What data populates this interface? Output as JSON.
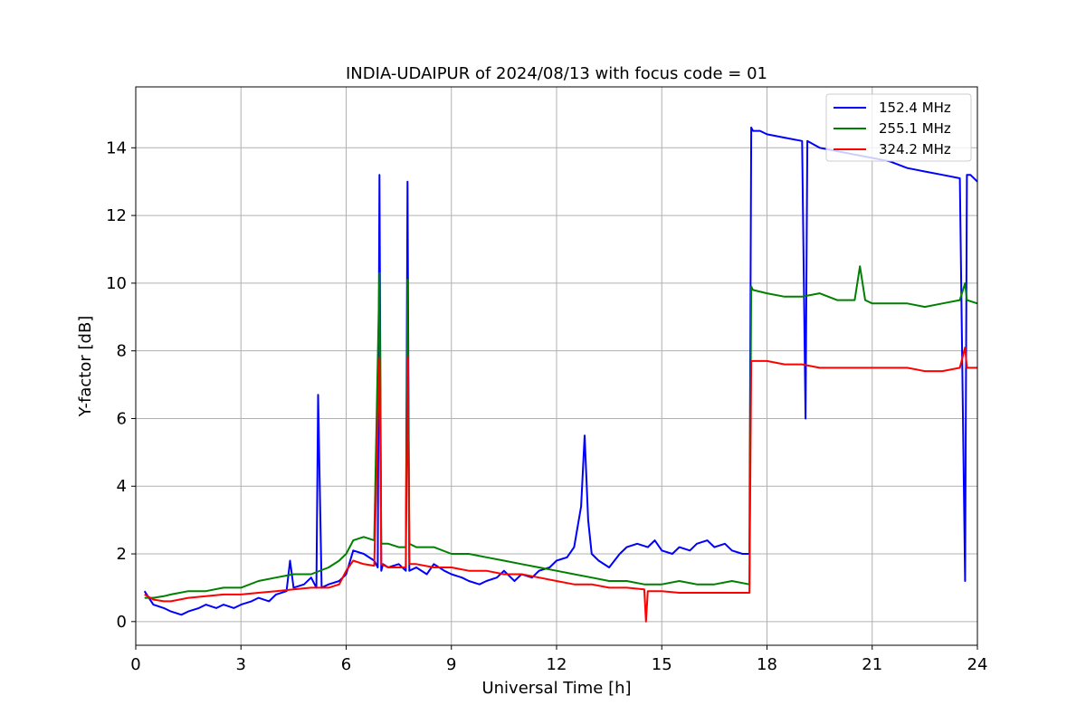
{
  "chart_data": {
    "type": "line",
    "title": "INDIA-UDAIPUR of 2024/08/13 with focus code = 01",
    "xlabel": "Universal Time [h]",
    "ylabel": "Y-factor [dB]",
    "xlim": [
      0,
      24
    ],
    "ylim": [
      -0.7,
      15.8
    ],
    "xticks": [
      0,
      3,
      6,
      9,
      12,
      15,
      18,
      21,
      24
    ],
    "yticks": [
      0,
      2,
      4,
      6,
      8,
      10,
      12,
      14
    ],
    "grid": true,
    "legend_position": "top-right",
    "series": [
      {
        "name": "152.4 MHz",
        "color": "#0000ff",
        "x": [
          0.25,
          0.5,
          0.8,
          1.0,
          1.3,
          1.5,
          1.8,
          2.0,
          2.3,
          2.5,
          2.8,
          3.0,
          3.3,
          3.5,
          3.8,
          4.0,
          4.3,
          4.4,
          4.5,
          4.8,
          5.0,
          5.15,
          5.2,
          5.3,
          5.5,
          5.8,
          6.0,
          6.2,
          6.5,
          6.8,
          6.9,
          6.95,
          7.0,
          7.05,
          7.2,
          7.5,
          7.7,
          7.75,
          7.8,
          8.0,
          8.3,
          8.5,
          8.8,
          9.0,
          9.3,
          9.5,
          9.8,
          10.0,
          10.3,
          10.5,
          10.8,
          11.0,
          11.3,
          11.5,
          11.8,
          12.0,
          12.3,
          12.5,
          12.7,
          12.8,
          12.9,
          13.0,
          13.2,
          13.5,
          13.8,
          14.0,
          14.3,
          14.6,
          14.8,
          15.0,
          15.3,
          15.5,
          15.8,
          16.0,
          16.3,
          16.5,
          16.8,
          17.0,
          17.3,
          17.5,
          17.55,
          17.6,
          17.8,
          18.0,
          18.5,
          19.0,
          19.1,
          19.15,
          19.5,
          20.0,
          20.5,
          21.0,
          21.5,
          22.0,
          22.5,
          23.0,
          23.5,
          23.65,
          23.7,
          23.8,
          24.0
        ],
        "y": [
          0.9,
          0.5,
          0.4,
          0.3,
          0.2,
          0.3,
          0.4,
          0.5,
          0.4,
          0.5,
          0.4,
          0.5,
          0.6,
          0.7,
          0.6,
          0.8,
          0.9,
          1.8,
          1.0,
          1.1,
          1.3,
          1.0,
          6.7,
          1.0,
          1.1,
          1.2,
          1.4,
          2.1,
          2.0,
          1.8,
          1.6,
          13.2,
          1.5,
          1.7,
          1.6,
          1.7,
          1.5,
          13.0,
          1.5,
          1.6,
          1.4,
          1.7,
          1.5,
          1.4,
          1.3,
          1.2,
          1.1,
          1.2,
          1.3,
          1.5,
          1.2,
          1.4,
          1.3,
          1.5,
          1.6,
          1.8,
          1.9,
          2.2,
          3.4,
          5.5,
          3.0,
          2.0,
          1.8,
          1.6,
          2.0,
          2.2,
          2.3,
          2.2,
          2.4,
          2.1,
          2.0,
          2.2,
          2.1,
          2.3,
          2.4,
          2.2,
          2.3,
          2.1,
          2.0,
          2.0,
          14.6,
          14.5,
          14.5,
          14.4,
          14.3,
          14.2,
          6.0,
          14.2,
          14.0,
          13.9,
          13.8,
          13.7,
          13.6,
          13.4,
          13.3,
          13.2,
          13.1,
          1.2,
          13.2,
          13.2,
          13.0
        ]
      },
      {
        "name": "255.1 MHz",
        "color": "#008000",
        "x": [
          0.25,
          0.5,
          0.8,
          1.0,
          1.5,
          2.0,
          2.5,
          3.0,
          3.5,
          4.0,
          4.5,
          5.0,
          5.5,
          5.8,
          6.0,
          6.2,
          6.5,
          6.8,
          6.95,
          7.0,
          7.2,
          7.5,
          7.7,
          7.75,
          7.8,
          8.0,
          8.5,
          9.0,
          9.5,
          10.0,
          10.5,
          11.0,
          11.5,
          12.0,
          12.5,
          13.0,
          13.5,
          14.0,
          14.5,
          15.0,
          15.5,
          16.0,
          16.5,
          17.0,
          17.5,
          17.55,
          17.6,
          18.0,
          18.5,
          19.0,
          19.5,
          20.0,
          20.5,
          20.65,
          20.8,
          21.0,
          21.5,
          22.0,
          22.5,
          23.0,
          23.5,
          23.65,
          23.7,
          24.0
        ],
        "y": [
          0.7,
          0.7,
          0.75,
          0.8,
          0.9,
          0.9,
          1.0,
          1.0,
          1.2,
          1.3,
          1.4,
          1.4,
          1.6,
          1.8,
          2.0,
          2.4,
          2.5,
          2.4,
          10.3,
          2.3,
          2.3,
          2.2,
          2.2,
          10.1,
          2.3,
          2.2,
          2.2,
          2.0,
          2.0,
          1.9,
          1.8,
          1.7,
          1.6,
          1.5,
          1.4,
          1.3,
          1.2,
          1.2,
          1.1,
          1.1,
          1.2,
          1.1,
          1.1,
          1.2,
          1.1,
          9.9,
          9.8,
          9.7,
          9.6,
          9.6,
          9.7,
          9.5,
          9.5,
          10.5,
          9.5,
          9.4,
          9.4,
          9.4,
          9.3,
          9.4,
          9.5,
          10.0,
          9.5,
          9.4
        ]
      },
      {
        "name": "324.2 MHz",
        "color": "#ff0000",
        "x": [
          0.25,
          0.5,
          0.8,
          1.0,
          1.5,
          2.0,
          2.5,
          3.0,
          3.5,
          4.0,
          4.5,
          5.0,
          5.5,
          5.8,
          6.0,
          6.2,
          6.5,
          6.8,
          6.95,
          7.0,
          7.2,
          7.5,
          7.7,
          7.75,
          7.8,
          8.0,
          8.5,
          9.0,
          9.5,
          10.0,
          10.5,
          11.0,
          11.5,
          12.0,
          12.5,
          13.0,
          13.5,
          14.0,
          14.5,
          14.55,
          14.6,
          15.0,
          15.5,
          16.0,
          16.5,
          17.0,
          17.5,
          17.55,
          17.6,
          18.0,
          18.5,
          19.0,
          19.5,
          20.0,
          20.5,
          21.0,
          21.5,
          22.0,
          22.5,
          23.0,
          23.5,
          23.65,
          23.7,
          24.0
        ],
        "y": [
          0.8,
          0.65,
          0.6,
          0.6,
          0.7,
          0.75,
          0.8,
          0.8,
          0.85,
          0.9,
          0.95,
          1.0,
          1.0,
          1.1,
          1.5,
          1.8,
          1.7,
          1.65,
          7.8,
          1.7,
          1.6,
          1.6,
          1.6,
          7.8,
          1.7,
          1.7,
          1.6,
          1.6,
          1.5,
          1.5,
          1.4,
          1.4,
          1.3,
          1.2,
          1.1,
          1.1,
          1.0,
          1.0,
          0.95,
          0.0,
          0.9,
          0.9,
          0.85,
          0.85,
          0.85,
          0.85,
          0.85,
          7.7,
          7.7,
          7.7,
          7.6,
          7.6,
          7.5,
          7.5,
          7.5,
          7.5,
          7.5,
          7.5,
          7.4,
          7.4,
          7.5,
          8.1,
          7.5,
          7.5
        ]
      }
    ]
  }
}
